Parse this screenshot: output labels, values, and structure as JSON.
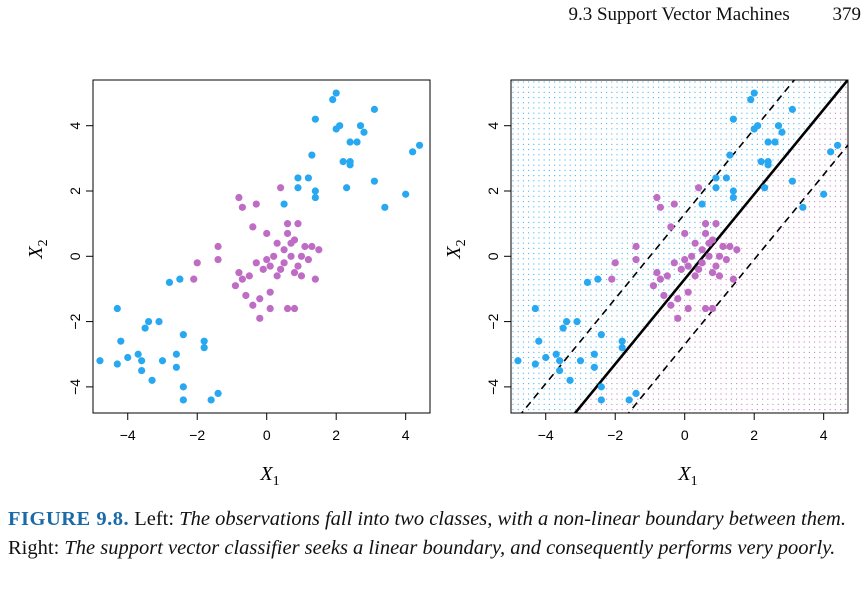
{
  "header": {
    "section": "9.3 Support Vector Machines",
    "page": "379"
  },
  "caption": {
    "label": "FIGURE 9.8.",
    "left_tag": "Left:",
    "left_text": "The observations fall into two classes, with a non-linear boundary between them.",
    "right_tag": "Right:",
    "right_text": "The support vector classifier seeks a linear boundary, and consequently performs very poorly."
  },
  "colors": {
    "blue": "#29a8f2",
    "purple": "#bf6cc4",
    "line": "#000000"
  },
  "chart_data": [
    {
      "type": "scatter",
      "panel": "left",
      "xlabel": "X1",
      "ylabel": "X2",
      "xlim": [
        -5.0,
        4.7
      ],
      "ylim": [
        -4.8,
        5.4
      ],
      "xticks": [
        -4,
        -2,
        0,
        2,
        4
      ],
      "yticks": [
        -4,
        -2,
        0,
        2,
        4
      ],
      "series": [
        {
          "class": "blue",
          "points": [
            [
              -4.8,
              -3.2
            ],
            [
              -4.3,
              -1.6
            ],
            [
              -4.3,
              -3.3
            ],
            [
              -4.2,
              -2.6
            ],
            [
              -4.0,
              -3.1
            ],
            [
              -3.7,
              -3.0
            ],
            [
              -3.6,
              -3.2
            ],
            [
              -3.6,
              -3.5
            ],
            [
              -3.5,
              -2.2
            ],
            [
              -3.4,
              -2.0
            ],
            [
              -3.3,
              -3.8
            ],
            [
              -3.1,
              -2.0
            ],
            [
              -3.0,
              -3.2
            ],
            [
              -2.8,
              -0.8
            ],
            [
              -2.6,
              -3.0
            ],
            [
              -2.6,
              -3.4
            ],
            [
              -2.5,
              -0.7
            ],
            [
              -2.4,
              -2.4
            ],
            [
              -2.4,
              -4.0
            ],
            [
              -2.4,
              -4.4
            ],
            [
              -1.8,
              -2.8
            ],
            [
              -1.8,
              -2.6
            ],
            [
              -1.6,
              -4.4
            ],
            [
              -1.4,
              -4.2
            ],
            [
              0.5,
              1.6
            ],
            [
              0.9,
              2.1
            ],
            [
              0.9,
              2.4
            ],
            [
              1.2,
              2.4
            ],
            [
              1.3,
              3.1
            ],
            [
              1.4,
              4.2
            ],
            [
              1.4,
              1.8
            ],
            [
              1.4,
              2.0
            ],
            [
              1.9,
              4.8
            ],
            [
              2.0,
              5.0
            ],
            [
              2.0,
              3.9
            ],
            [
              2.1,
              4.0
            ],
            [
              2.2,
              2.9
            ],
            [
              2.3,
              2.1
            ],
            [
              2.4,
              2.8
            ],
            [
              2.4,
              2.9
            ],
            [
              2.4,
              3.5
            ],
            [
              2.6,
              3.5
            ],
            [
              2.7,
              4.0
            ],
            [
              2.8,
              3.8
            ],
            [
              3.1,
              2.3
            ],
            [
              3.1,
              4.5
            ],
            [
              3.4,
              1.5
            ],
            [
              4.0,
              1.9
            ],
            [
              4.2,
              3.2
            ],
            [
              4.4,
              3.4
            ]
          ]
        },
        {
          "class": "purple",
          "points": [
            [
              -2.1,
              -0.7
            ],
            [
              -2.0,
              -0.2
            ],
            [
              -1.4,
              0.3
            ],
            [
              -1.4,
              -0.1
            ],
            [
              -0.9,
              -0.9
            ],
            [
              -0.8,
              1.8
            ],
            [
              -0.8,
              -0.5
            ],
            [
              -0.7,
              1.5
            ],
            [
              -0.7,
              -0.7
            ],
            [
              -0.6,
              -1.2
            ],
            [
              -0.5,
              -0.6
            ],
            [
              -0.4,
              0.9
            ],
            [
              -0.4,
              -1.5
            ],
            [
              -0.3,
              1.6
            ],
            [
              -0.3,
              -0.2
            ],
            [
              -0.2,
              -1.3
            ],
            [
              -0.2,
              -1.9
            ],
            [
              -0.1,
              -0.4
            ],
            [
              0.0,
              0.7
            ],
            [
              0.0,
              -0.1
            ],
            [
              0.1,
              -0.3
            ],
            [
              0.1,
              -1.1
            ],
            [
              0.1,
              -1.6
            ],
            [
              0.2,
              0.0
            ],
            [
              0.3,
              0.4
            ],
            [
              0.3,
              -0.6
            ],
            [
              0.4,
              2.1
            ],
            [
              0.4,
              -0.4
            ],
            [
              0.5,
              0.2
            ],
            [
              0.5,
              -0.2
            ],
            [
              0.6,
              0.7
            ],
            [
              0.6,
              1.0
            ],
            [
              0.6,
              -1.6
            ],
            [
              0.7,
              0.0
            ],
            [
              0.7,
              0.4
            ],
            [
              0.8,
              0.5
            ],
            [
              0.8,
              -0.5
            ],
            [
              0.8,
              -1.6
            ],
            [
              0.9,
              1.0
            ],
            [
              0.9,
              -0.3
            ],
            [
              1.0,
              0.0
            ],
            [
              1.0,
              -0.6
            ],
            [
              1.1,
              0.3
            ],
            [
              1.2,
              -0.1
            ],
            [
              1.3,
              0.3
            ],
            [
              1.4,
              -0.7
            ],
            [
              1.5,
              0.2
            ]
          ]
        }
      ]
    },
    {
      "type": "scatter",
      "panel": "right",
      "xlabel": "X1",
      "ylabel": "X2",
      "xlim": [
        -5.0,
        4.7
      ],
      "ylim": [
        -4.8,
        5.4
      ],
      "xticks": [
        -4,
        -2,
        0,
        2,
        4
      ],
      "yticks": [
        -4,
        -2,
        0,
        2,
        4
      ],
      "series": "same observations as left panel",
      "decision_boundary": {
        "slope": 1.3,
        "intercept": -0.7
      },
      "margins": [
        {
          "slope": 1.3,
          "intercept": 1.3
        },
        {
          "slope": 1.3,
          "intercept": -2.7
        }
      ],
      "background_grid": "dotted region coloring: blue above boundary, purple below"
    }
  ]
}
